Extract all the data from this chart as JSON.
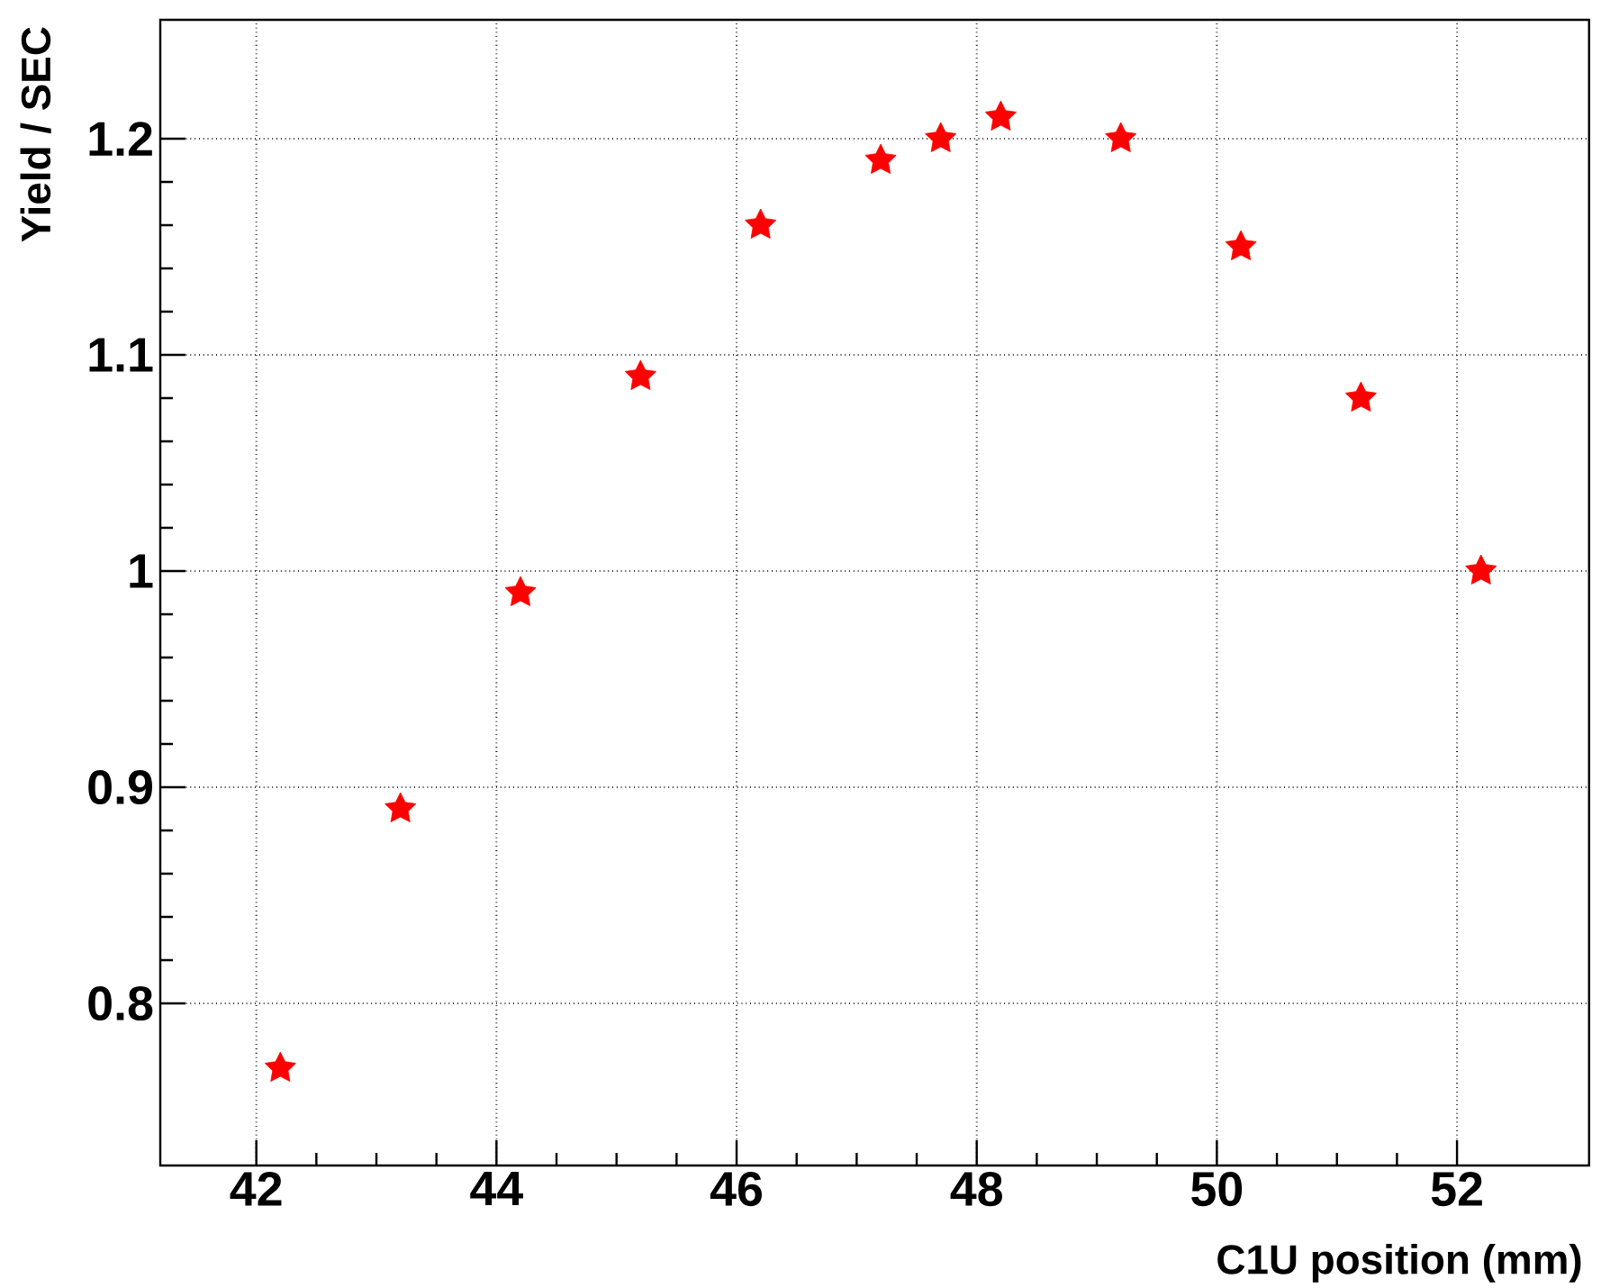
{
  "chart_data": {
    "type": "scatter",
    "xlabel": "C1U position (mm)",
    "ylabel": "Yield / SEC",
    "x": [
      42.2,
      43.2,
      44.2,
      45.2,
      46.2,
      47.2,
      47.7,
      48.2,
      49.2,
      50.2,
      51.2,
      52.2
    ],
    "series": [
      {
        "color": "#ff0000",
        "values": [
          0.77,
          0.89,
          0.99,
          1.09,
          1.16,
          1.19,
          1.2,
          1.21,
          1.2,
          1.15,
          1.08,
          1.0
        ]
      }
    ],
    "xlim": [
      41.2,
      53.1
    ],
    "ylim": [
      0.725,
      1.255
    ],
    "xticks": [
      42,
      44,
      46,
      48,
      50,
      52
    ],
    "yticks": [
      0.8,
      0.9,
      1,
      1.1,
      1.2
    ],
    "grid": true,
    "marker": "star"
  }
}
